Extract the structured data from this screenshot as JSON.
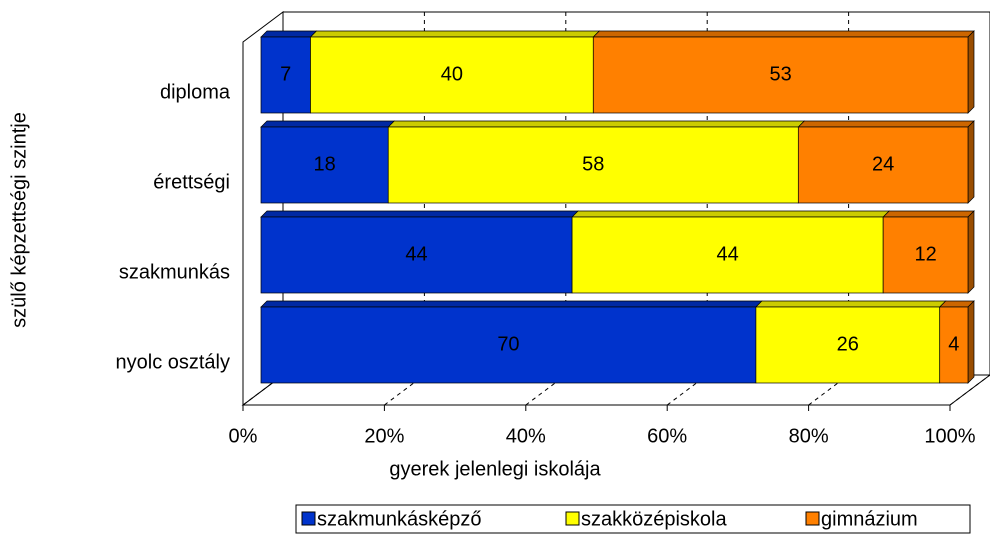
{
  "chart_data": {
    "type": "stacked_bar_horizontal_3d",
    "x_label": "gyerek jelenlegi iskolája",
    "y_label": "szülő képzettségi szintje",
    "categories": [
      "diploma",
      "érettségi",
      "szakmunkás",
      "nyolc osztály"
    ],
    "series": [
      {
        "name": "szakmunkásképző",
        "color": "#0033cc",
        "values": [
          7,
          18,
          44,
          70
        ]
      },
      {
        "name": "szakközépiskola",
        "color": "#ffff00",
        "values": [
          40,
          58,
          44,
          26
        ]
      },
      {
        "name": "gimnázium",
        "color": "#ff8000",
        "values": [
          53,
          24,
          12,
          4
        ]
      }
    ],
    "xlim": [
      0,
      100
    ],
    "xticks": [
      {
        "value": 0,
        "label": "0%"
      },
      {
        "value": 20,
        "label": "20%"
      },
      {
        "value": 40,
        "label": "40%"
      },
      {
        "value": 60,
        "label": "60%"
      },
      {
        "value": 80,
        "label": "80%"
      },
      {
        "value": 100,
        "label": "100%"
      }
    ],
    "grid": true,
    "legend": "bottom"
  }
}
